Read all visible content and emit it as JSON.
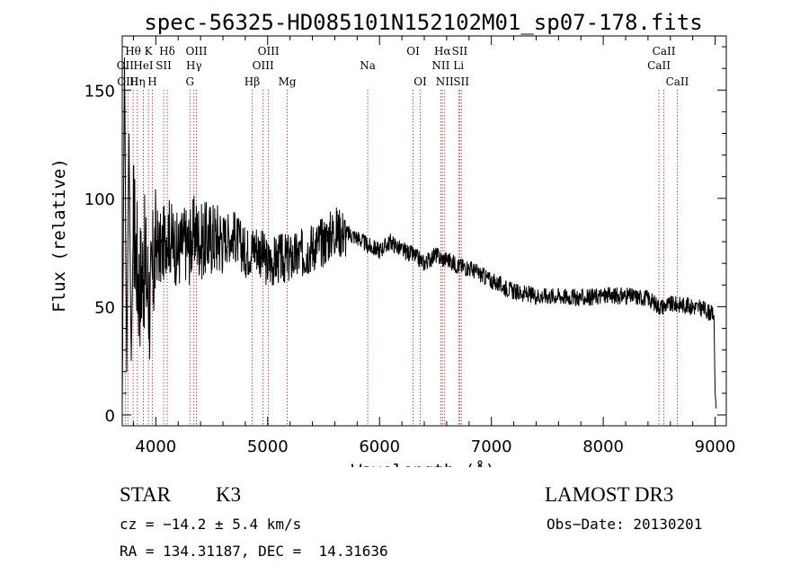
{
  "chart_data": {
    "type": "line",
    "title": "spec-56325-HD085101N152102M01_sp07-178.fits",
    "xlabel": "Wavelength (Å)",
    "ylabel": "Flux (relative)",
    "xlim": [
      3700,
      9100
    ],
    "ylim": [
      -5,
      175
    ],
    "xticks": [
      4000,
      5000,
      6000,
      7000,
      8000,
      9000
    ],
    "yticks": [
      0,
      50,
      100,
      150
    ],
    "x_minor_step": 200,
    "y_minor_step": 10,
    "series": [
      {
        "name": "spectrum",
        "x": [
          3700,
          3720,
          3740,
          3760,
          3780,
          3800,
          3850,
          3900,
          3950,
          4000,
          4050,
          4100,
          4150,
          4200,
          4250,
          4300,
          4350,
          4400,
          4500,
          4600,
          4700,
          4800,
          4900,
          5000,
          5100,
          5200,
          5300,
          5400,
          5500,
          5600,
          5700,
          5800,
          5900,
          6000,
          6100,
          6200,
          6300,
          6400,
          6500,
          6560,
          6600,
          6700,
          6800,
          6900,
          7000,
          7200,
          7400,
          7600,
          7800,
          8000,
          8200,
          8400,
          8500,
          8600,
          8700,
          8800,
          8900,
          8990,
          9000,
          9010
        ],
        "y": [
          5,
          165,
          20,
          130,
          25,
          90,
          60,
          70,
          50,
          80,
          75,
          85,
          80,
          75,
          80,
          78,
          85,
          80,
          82,
          82,
          83,
          75,
          78,
          70,
          72,
          72,
          74,
          78,
          80,
          85,
          84,
          82,
          78,
          76,
          80,
          76,
          74,
          70,
          74,
          72,
          72,
          69,
          68,
          65,
          62,
          57,
          55,
          55,
          54,
          55,
          55,
          54,
          50,
          51,
          51,
          50,
          49,
          46,
          10,
          3
        ]
      }
    ],
    "line_markers": [
      {
        "label": "OII",
        "wave": 3727,
        "row": 2
      },
      {
        "label": "Hθ",
        "wave": 3797,
        "row": 1
      },
      {
        "label": "OIII",
        "wave": 3750,
        "row": 3
      },
      {
        "label": "Hη",
        "wave": 3835,
        "row": 3
      },
      {
        "label": "HeI",
        "wave": 3889,
        "row": 2
      },
      {
        "label": "K",
        "wave": 3934,
        "row": 1
      },
      {
        "label": "H",
        "wave": 3969,
        "row": 3
      },
      {
        "label": "SII",
        "wave": 4070,
        "row": 2
      },
      {
        "label": "Hδ",
        "wave": 4102,
        "row": 1
      },
      {
        "label": "G",
        "wave": 4305,
        "row": 3
      },
      {
        "label": "Hγ",
        "wave": 4341,
        "row": 2
      },
      {
        "label": "OIII",
        "wave": 4363,
        "row": 1
      },
      {
        "label": "Hβ",
        "wave": 4861,
        "row": 3
      },
      {
        "label": "OIII",
        "wave": 4959,
        "row": 2
      },
      {
        "label": "OIII",
        "wave": 5007,
        "row": 1
      },
      {
        "label": "Mg",
        "wave": 5175,
        "row": 3
      },
      {
        "label": "Na",
        "wave": 5894,
        "row": 2
      },
      {
        "label": "OI",
        "wave": 6300,
        "row": 1
      },
      {
        "label": "OI",
        "wave": 6364,
        "row": 3
      },
      {
        "label": "NII",
        "wave": 6548,
        "row": 2
      },
      {
        "label": "Hα",
        "wave": 6563,
        "row": 1
      },
      {
        "label": "NII",
        "wave": 6583,
        "row": 3
      },
      {
        "label": "Li",
        "wave": 6707,
        "row": 2
      },
      {
        "label": "SII",
        "wave": 6717,
        "row": 1
      },
      {
        "label": "SII",
        "wave": 6731,
        "row": 3
      },
      {
        "label": "CaII",
        "wave": 8498,
        "row": 2
      },
      {
        "label": "CaII",
        "wave": 8542,
        "row": 1
      },
      {
        "label": "CaII",
        "wave": 8662,
        "row": 3
      }
    ],
    "colors": {
      "spectrum": "#000000",
      "line_marker": "#aa2222",
      "axes": "#000000"
    }
  },
  "info": {
    "object_class": "STAR",
    "subclass": "K3",
    "survey": "LAMOST DR3",
    "redshift": "cz = −14.2 ± 5.4 km/s",
    "obs_date": "Obs−Date: 20130201",
    "coords": "RA = 134.31187, DEC =  14.31636"
  }
}
